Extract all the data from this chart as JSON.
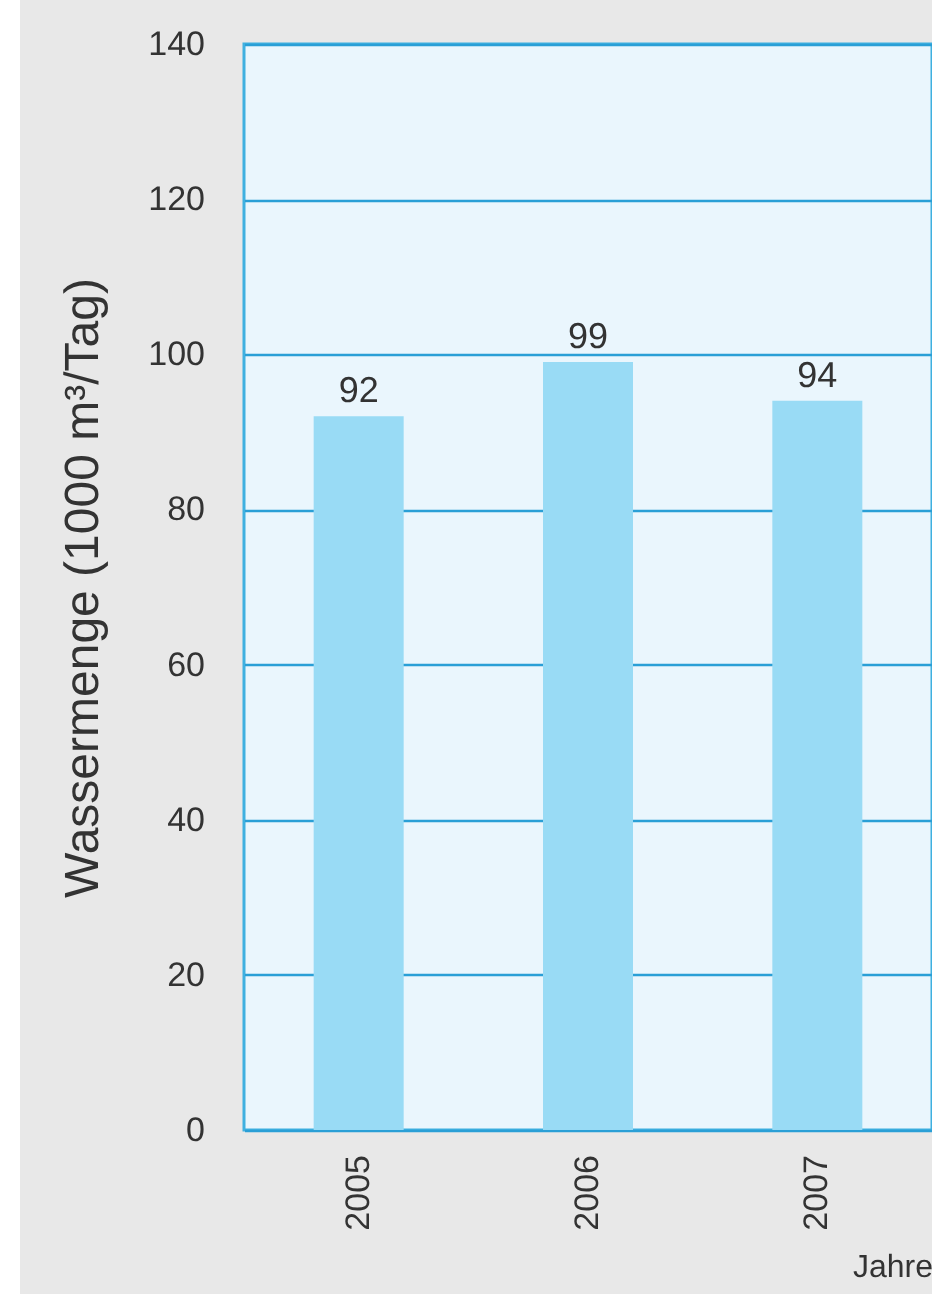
{
  "chart_data": {
    "type": "bar",
    "ylabel": "Wassermenge (1000 m³/Tag)",
    "xlabel": "Jahre",
    "categories": [
      "2005",
      "2006",
      "2007"
    ],
    "values": [
      92,
      99,
      94
    ],
    "color": "#99dbf5",
    "ylim": [
      0,
      140
    ],
    "yticks": [
      0,
      20,
      40,
      60,
      80,
      100,
      120,
      140
    ],
    "grid": "y",
    "data_labels": true
  }
}
